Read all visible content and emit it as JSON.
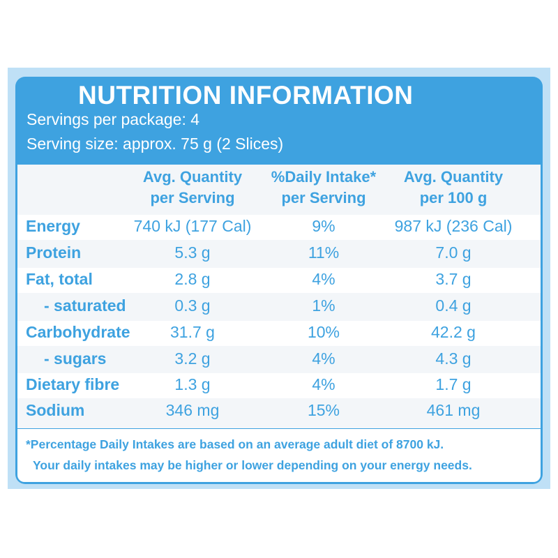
{
  "panel": {
    "title": "NUTRITION INFORMATION",
    "servings_per_package": "Servings per package: 4",
    "serving_size": "Serving size: approx. 75 g (2 Slices)"
  },
  "columns": [
    {
      "line1": "Avg. Quantity",
      "line2": "per Serving"
    },
    {
      "line1": "%Daily Intake*",
      "line2": "per Serving"
    },
    {
      "line1": "Avg. Quantity",
      "line2": "per 100 g"
    }
  ],
  "rows": [
    {
      "label": "Energy",
      "per_serving": "740 kJ (177 Cal)",
      "daily_intake": "9%",
      "per_100g": "987 kJ (236 Cal)"
    },
    {
      "label": "Protein",
      "per_serving": "5.3 g",
      "daily_intake": "11%",
      "per_100g": "7.0 g"
    },
    {
      "label": "Fat, total",
      "per_serving": "2.8 g",
      "daily_intake": "4%",
      "per_100g": "3.7 g"
    },
    {
      "label": "- saturated",
      "per_serving": "0.3 g",
      "daily_intake": "1%",
      "per_100g": "0.4 g"
    },
    {
      "label": "Carbohydrate",
      "per_serving": "31.7 g",
      "daily_intake": "10%",
      "per_100g": "42.2 g"
    },
    {
      "label": "- sugars",
      "per_serving": "3.2 g",
      "daily_intake": "4%",
      "per_100g": "4.3 g"
    },
    {
      "label": "Dietary fibre",
      "per_serving": "1.3 g",
      "daily_intake": "4%",
      "per_100g": "1.7 g"
    },
    {
      "label": "Sodium",
      "per_serving": "346 mg",
      "daily_intake": "15%",
      "per_100g": "461 mg"
    }
  ],
  "footnote": {
    "line1": "*Percentage Daily Intakes are based on an average adult diet of 8700 kJ.",
    "line2": "Your daily intakes may be higher or lower depending on your energy needs."
  },
  "colors": {
    "accent": "#3ea2e0",
    "light_band": "#f3f6f9",
    "outer_border": "#bfe0f6"
  }
}
